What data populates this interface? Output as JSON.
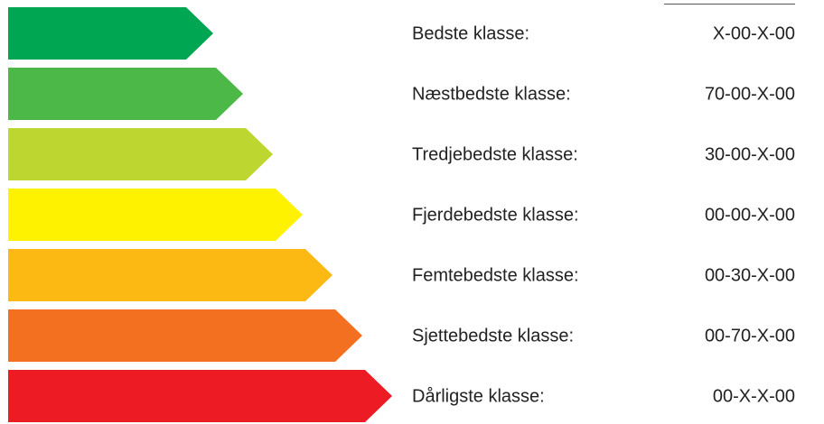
{
  "classes": [
    {
      "label": "Bedste klasse:",
      "code": "X-00-X-00",
      "color": "#00a651"
    },
    {
      "label": "Næstbedste klasse:",
      "code": "70-00-X-00",
      "color": "#4cb848"
    },
    {
      "label": "Tredjebedste klasse:",
      "code": "30-00-X-00",
      "color": "#bed630"
    },
    {
      "label": "Fjerdebedste klasse:",
      "code": "00-00-X-00",
      "color": "#fff200"
    },
    {
      "label": "Femtebedste klasse:",
      "code": "00-30-X-00",
      "color": "#fdb913"
    },
    {
      "label": "Sjettebedste klasse:",
      "code": "00-70-X-00",
      "color": "#f37021"
    },
    {
      "label": "Dårligste klasse:",
      "code": "00-X-X-00",
      "color": "#ed1c24"
    }
  ]
}
